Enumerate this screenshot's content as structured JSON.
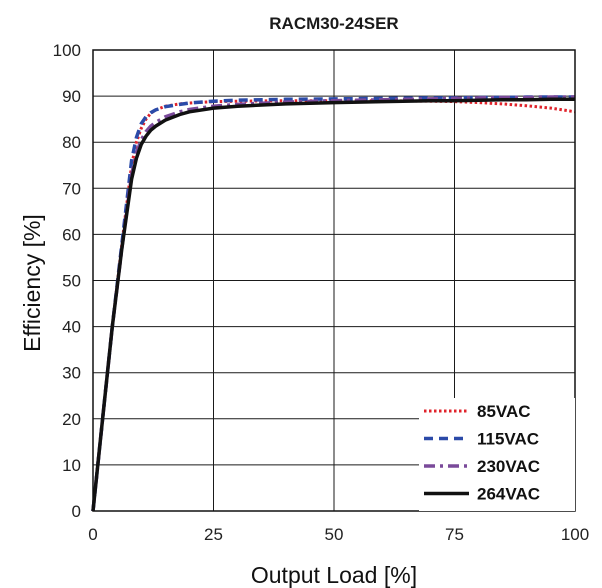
{
  "chart_data": {
    "type": "line",
    "title": "RACM30-24SER",
    "xlabel": "Output Load [%]",
    "ylabel": "Efficiency [%]",
    "xlim": [
      0,
      100
    ],
    "ylim": [
      0,
      100
    ],
    "x_ticks": [
      0,
      25,
      50,
      75,
      100
    ],
    "y_ticks": [
      0,
      10,
      20,
      30,
      40,
      50,
      60,
      70,
      80,
      90,
      100
    ],
    "grid": true,
    "legend_position": "bottom-right",
    "series": [
      {
        "name": "85VAC",
        "color": "#e0232b",
        "style": "dotted",
        "x": [
          0,
          2,
          4,
          6,
          8,
          9,
          10,
          11,
          12,
          13,
          15,
          18,
          20,
          25,
          30,
          40,
          50,
          60,
          70,
          75,
          80,
          85,
          90,
          95,
          100
        ],
        "y": [
          0,
          20,
          40,
          58,
          75,
          80,
          83,
          85,
          86.3,
          87,
          87.8,
          88.3,
          88.5,
          88.8,
          88.9,
          89,
          89,
          89,
          88.9,
          88.8,
          88.6,
          88.3,
          87.9,
          87.4,
          86.6
        ]
      },
      {
        "name": "115VAC",
        "color": "#2b4aa8",
        "style": "dashed",
        "x": [
          0,
          2,
          4,
          6,
          8,
          9,
          10,
          11,
          12,
          13,
          15,
          18,
          20,
          25,
          30,
          40,
          50,
          60,
          70,
          75,
          80,
          85,
          90,
          95,
          100
        ],
        "y": [
          0,
          20,
          40,
          58,
          76,
          81,
          84,
          85.5,
          86.4,
          87,
          87.7,
          88.2,
          88.5,
          88.9,
          89.1,
          89.3,
          89.4,
          89.5,
          89.6,
          89.6,
          89.7,
          89.7,
          89.8,
          89.8,
          89.8
        ]
      },
      {
        "name": "230VAC",
        "color": "#7a4a9a",
        "style": "dashdot",
        "x": [
          0,
          2,
          4,
          6,
          8,
          9,
          10,
          11,
          12,
          13,
          15,
          18,
          20,
          25,
          30,
          40,
          50,
          60,
          70,
          75,
          80,
          85,
          90,
          95,
          100
        ],
        "y": [
          0,
          20,
          40,
          57,
          73,
          77.5,
          80.5,
          82.3,
          83.5,
          84.3,
          85.5,
          86.6,
          87.1,
          87.8,
          88.2,
          88.7,
          89,
          89.2,
          89.4,
          89.5,
          89.6,
          89.7,
          89.7,
          89.8,
          89.8
        ]
      },
      {
        "name": "264VAC",
        "color": "#111111",
        "style": "solid",
        "x": [
          0,
          2,
          4,
          6,
          8,
          9,
          10,
          11,
          12,
          13,
          15,
          18,
          20,
          25,
          30,
          40,
          50,
          60,
          70,
          75,
          80,
          85,
          90,
          95,
          100
        ],
        "y": [
          0,
          20,
          40,
          57,
          72,
          76.5,
          79.5,
          81.3,
          82.6,
          83.5,
          84.8,
          86,
          86.6,
          87.4,
          87.8,
          88.3,
          88.6,
          88.8,
          89,
          89,
          89.1,
          89.2,
          89.2,
          89.3,
          89.3
        ]
      }
    ]
  }
}
